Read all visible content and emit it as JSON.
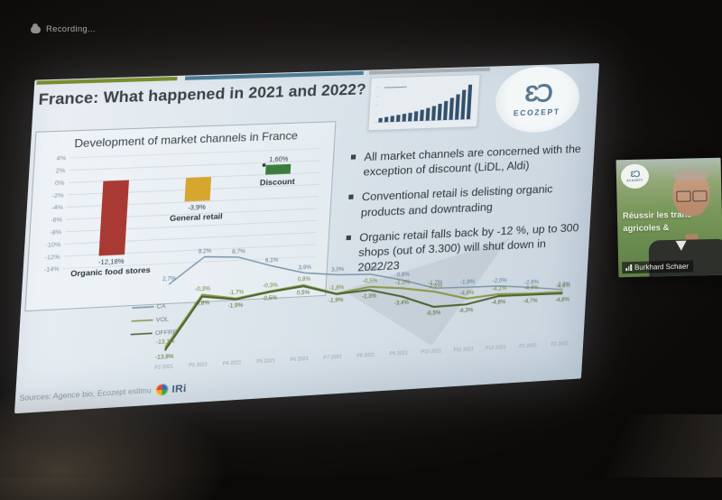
{
  "meeting": {
    "recording_label": "Recording..."
  },
  "slide": {
    "title": "France: What happened in 2021 and 2022?",
    "logo_glyph": "ƐↃ",
    "logo_text": "ECOZEPT",
    "bullets": [
      "All market channels are concerned with the exception of discount (LiDL, Aldi)",
      "Conventional retail is delisting organic products and downtrading",
      "Organic retail falls back by -12 %, up to 300 shops (out of 3.300) will shut down in 2022/23"
    ],
    "sources": "Sources: Agence bio, Ecozept estimu",
    "iri_label": "IRi"
  },
  "webcam": {
    "participant_name": "Burkhard Schaer",
    "overlay_line1": "Réussir les trans",
    "overlay_line2": "agricoles &",
    "logo_glyph": "ƐↃ",
    "logo_text": "ECOZEPT"
  },
  "colors": {
    "header_green": "#7b8c2e",
    "header_blue": "#4e7c95",
    "header_gray": "#a7adb0",
    "iri_blue": "#43597b"
  },
  "chart_data": [
    {
      "id": "market-channels-bar",
      "type": "bar",
      "title": "Development of market channels in France",
      "categories": [
        "Organic food stores",
        "General retail",
        "Discount"
      ],
      "values": [
        -12.18,
        -3.9,
        1.6
      ],
      "value_labels": [
        "-12,18%",
        "-3,9%",
        "1,60%"
      ],
      "bar_colors": [
        "#a93a33",
        "#d7a62f",
        "#3c7d3e"
      ],
      "ylim": [
        -14,
        4
      ],
      "yticks": [
        4,
        2,
        0,
        -2,
        -4,
        -6,
        -8,
        -10,
        -12,
        -14
      ],
      "ytick_labels": [
        "4%",
        "2%",
        "0%",
        "-2%",
        "-4%",
        "-6%",
        "-8%",
        "-10%",
        "-12%",
        "-14%"
      ],
      "grid": true,
      "legend_position": "none"
    },
    {
      "id": "monthly-evolution-line",
      "type": "line",
      "categories": [
        "P2 2021",
        "P3 2021",
        "P4 2021",
        "P5 2021",
        "P6 2021",
        "P7 2021",
        "P8 2021",
        "P9 2021",
        "P10 2021",
        "P11 2021",
        "P12 2021",
        "P1 2022",
        "P2 2022"
      ],
      "ylim": [
        -15,
        11
      ],
      "grid": false,
      "legend_position": "left",
      "series": [
        {
          "name": "CA",
          "color": "#7c95aa",
          "label_color": "#5e7b96",
          "values": [
            2.7,
            9.2,
            8.7,
            6.1,
            3.9,
            3.0,
            2.7,
            0.8,
            -1.7,
            -1.9,
            -2.0,
            -2.8,
            -3.8
          ]
        },
        {
          "name": "VOL",
          "color": "#8a9747",
          "label_color": "#73803a",
          "values": [
            -13.1,
            -0.3,
            -1.7,
            -0.3,
            0.8,
            -1.8,
            -0.5,
            -1.3,
            -2.6,
            -4.8,
            -4.1,
            -4.4,
            -4.4
          ]
        },
        {
          "name": "OFFRE",
          "color": "#4e6330",
          "label_color": "#55682c",
          "values": [
            -13.8,
            -0.8,
            -1.9,
            -0.5,
            0.5,
            -1.9,
            -1.3,
            -3.4,
            -6.5,
            -6.3,
            -4.6,
            -4.7,
            -4.8
          ]
        }
      ]
    },
    {
      "id": "thumbnail-growth-bar",
      "type": "bar",
      "title": "",
      "values": [
        1,
        1.2,
        1.4,
        1.6,
        1.8,
        2.0,
        2.3,
        2.6,
        3.0,
        3.4,
        3.9,
        4.5,
        5.2,
        6.0,
        7.0,
        8.2
      ],
      "bar_color": "#31506c"
    }
  ]
}
